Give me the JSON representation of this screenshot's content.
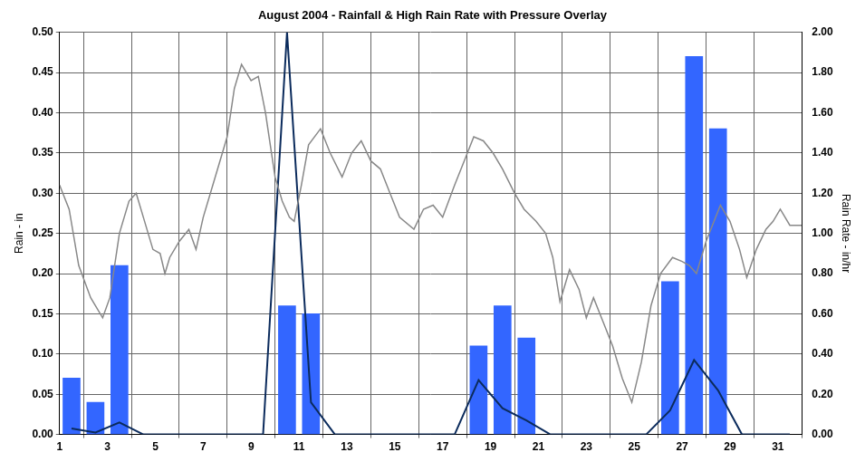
{
  "chart_data": {
    "type": "bar",
    "title": "August 2004 - Rainfall & High Rain Rate with Pressure Overlay",
    "y_label": "Rain - in",
    "y2_label": "Rain Rate - in/hr",
    "grid": true,
    "xlim": [
      1,
      32
    ],
    "xticks": [
      1,
      3,
      5,
      7,
      9,
      11,
      13,
      15,
      17,
      19,
      21,
      23,
      25,
      27,
      29,
      31
    ],
    "ylim": [
      0,
      0.5
    ],
    "yticks": [
      {
        "value": 0,
        "label": "0.00"
      },
      {
        "value": 0.05,
        "label": "0.05"
      },
      {
        "value": 0.1,
        "label": "0.10"
      },
      {
        "value": 0.15,
        "label": "0.15"
      },
      {
        "value": 0.2,
        "label": "0.20"
      },
      {
        "value": 0.25,
        "label": "0.25"
      },
      {
        "value": 0.3,
        "label": "0.30"
      },
      {
        "value": 0.35,
        "label": "0.35"
      },
      {
        "value": 0.4,
        "label": "0.40"
      },
      {
        "value": 0.45,
        "label": "0.45"
      },
      {
        "value": 0.5,
        "label": "0.50"
      }
    ],
    "y2lim": [
      0,
      2
    ],
    "y2ticks": [
      {
        "value": 0,
        "label": "0.00"
      },
      {
        "value": 0.2,
        "label": "0.20"
      },
      {
        "value": 0.4,
        "label": "0.40"
      },
      {
        "value": 0.6,
        "label": "0.60"
      },
      {
        "value": 0.8,
        "label": "0.80"
      },
      {
        "value": 1,
        "label": "1.00"
      },
      {
        "value": 1.2,
        "label": "1.20"
      },
      {
        "value": 1.4,
        "label": "1.40"
      },
      {
        "value": 1.6,
        "label": "1.60"
      },
      {
        "value": 1.8,
        "label": "1.80"
      },
      {
        "value": 2,
        "label": "2.00"
      }
    ],
    "series": [
      {
        "type": "bar",
        "color": "#3366ff",
        "x": [
          1.5,
          2.5,
          3.5,
          10.5,
          11.5,
          18.5,
          19.5,
          20.5,
          26.5,
          27.5,
          28.5
        ],
        "values": [
          0.07,
          0.04,
          0.21,
          0.16,
          0.15,
          0.11,
          0.16,
          0.12,
          0.19,
          0.47,
          0.38
        ]
      },
      {
        "type": "line",
        "color": "#0b2b5c",
        "axis": "y2",
        "marker": "none",
        "x": [
          1.5,
          2.5,
          3.5,
          4.5,
          5.5,
          6.5,
          7.5,
          8.5,
          9.5,
          10.5,
          11.5,
          12.5,
          13.5,
          14.5,
          15.5,
          16.5,
          17.5,
          18.5,
          19.5,
          20.5,
          21.5,
          22.5,
          23.5,
          24.5,
          25.5,
          26.5,
          27.5,
          28.5,
          29.5,
          30.5,
          31.5
        ],
        "values": [
          0.03,
          0.01,
          0.06,
          0,
          0,
          0,
          0,
          0,
          0,
          2,
          0.16,
          0,
          0,
          0,
          0,
          0,
          0,
          0.27,
          0.13,
          0.07,
          0,
          0,
          0,
          0,
          0,
          0.12,
          0.37,
          0.22,
          0,
          0,
          0
        ]
      },
      {
        "type": "line",
        "color": "#888888",
        "marker": "none",
        "x": [
          1.0,
          1.4,
          1.8,
          2.3,
          2.8,
          3.1,
          3.5,
          3.9,
          4.2,
          4.5,
          4.9,
          5.2,
          5.4,
          5.6,
          6.0,
          6.4,
          6.7,
          7.0,
          7.5,
          8.0,
          8.3,
          8.6,
          9.0,
          9.3,
          9.6,
          10.0,
          10.3,
          10.6,
          10.8,
          11.1,
          11.4,
          11.9,
          12.3,
          12.8,
          13.2,
          13.6,
          14.0,
          14.4,
          14.8,
          15.2,
          15.8,
          16.2,
          16.6,
          17.0,
          17.5,
          17.9,
          18.3,
          18.7,
          19.1,
          19.5,
          20.0,
          20.4,
          20.9,
          21.3,
          21.6,
          21.9,
          22.3,
          22.7,
          23.0,
          23.3,
          23.7,
          24.1,
          24.5,
          24.9,
          25.3,
          25.7,
          26.1,
          26.6,
          27.0,
          27.3,
          27.6,
          28.0,
          28.6,
          29.0,
          29.4,
          29.7,
          30.1,
          30.5,
          30.8,
          31.1,
          31.5,
          32.0
        ],
        "values": [
          0.31,
          0.28,
          0.21,
          0.17,
          0.145,
          0.17,
          0.25,
          0.29,
          0.3,
          0.27,
          0.23,
          0.225,
          0.2,
          0.22,
          0.24,
          0.255,
          0.23,
          0.27,
          0.32,
          0.37,
          0.43,
          0.46,
          0.44,
          0.445,
          0.4,
          0.32,
          0.29,
          0.27,
          0.265,
          0.31,
          0.36,
          0.38,
          0.35,
          0.32,
          0.35,
          0.365,
          0.34,
          0.33,
          0.3,
          0.27,
          0.255,
          0.28,
          0.285,
          0.27,
          0.31,
          0.34,
          0.37,
          0.365,
          0.35,
          0.33,
          0.3,
          0.28,
          0.265,
          0.25,
          0.22,
          0.165,
          0.205,
          0.18,
          0.145,
          0.17,
          0.14,
          0.11,
          0.07,
          0.04,
          0.09,
          0.16,
          0.2,
          0.22,
          0.215,
          0.21,
          0.2,
          0.24,
          0.285,
          0.265,
          0.23,
          0.195,
          0.23,
          0.255,
          0.265,
          0.28,
          0.26,
          0.26
        ]
      }
    ]
  }
}
